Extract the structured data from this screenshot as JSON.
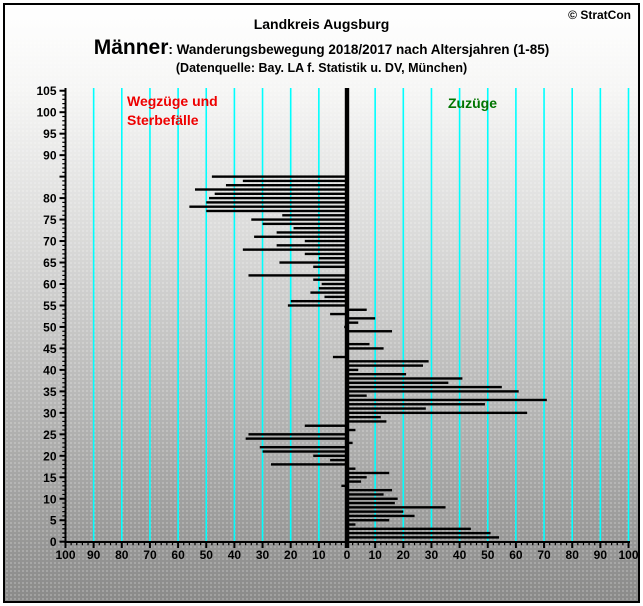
{
  "header": {
    "copyright": "© StratCon",
    "title": "Landkreis Augsburg",
    "group_label": "Männer",
    "subtitle": ": Wanderungsbewegung 2018/2017 nach Altersjahren (1-85)",
    "source": "(Datenquelle: Bay. LA f. Statistik u. DV, München)"
  },
  "chart_data": {
    "type": "bar",
    "orientation": "horizontal-diverging",
    "title": "Landkreis Augsburg",
    "left_label": "Wegzüge und Sterbefälle",
    "right_label": "Zuzüge",
    "left_label_color": "#ee0000",
    "right_label_color": "#007500",
    "bar_color": "#000000",
    "gridline_color": "#00ffff",
    "axis_color": "#000000",
    "x_axis": {
      "min": -100,
      "max": 100,
      "label_step": 10,
      "minor_tick_step": 2,
      "labels_absolute": true
    },
    "y_axis": {
      "min": 0,
      "max": 105,
      "label_step": 5,
      "minor_tick_step": 1,
      "missing_labels": [
        85
      ],
      "unit": "Altersjahre"
    },
    "age_start": 1,
    "note": "negative = Wegzüge und Sterbefälle (links), positive = Zuzüge (rechts)",
    "values_by_age": [
      54,
      51,
      44,
      3,
      15,
      24,
      20,
      35,
      17,
      18,
      13,
      16,
      -2,
      5,
      7,
      15,
      3,
      -27,
      -6,
      -12,
      -30,
      -31,
      2,
      -36,
      -35,
      3,
      -15,
      14,
      12,
      64,
      28,
      49,
      71,
      7,
      61,
      55,
      36,
      41,
      21,
      4,
      27,
      29,
      -5,
      0,
      13,
      8,
      0,
      0,
      16,
      -1,
      4,
      10,
      -6,
      7,
      -21,
      -20,
      -8,
      -13,
      -10,
      -9,
      -12,
      -35,
      0,
      -12,
      -24,
      -10,
      -15,
      -37,
      -25,
      -15,
      -33,
      -25,
      -19,
      -30,
      -34,
      -23,
      -50,
      -56,
      -50,
      -49,
      -47,
      -54,
      -43,
      -37,
      -48
    ]
  }
}
